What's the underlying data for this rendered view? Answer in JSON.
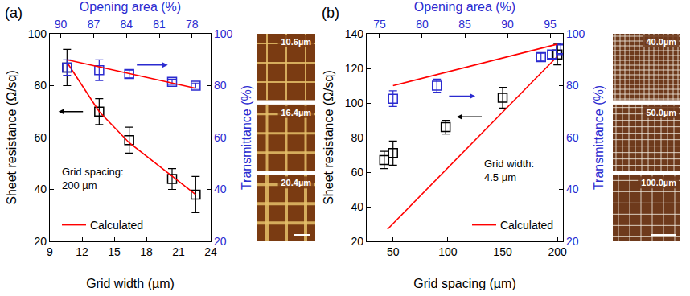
{
  "chart_data": [
    {
      "type": "scatter",
      "panel_label": "(a)",
      "x_label": "Grid width (µm)",
      "x2_label": "Opening area (%)",
      "y_label": "Sheet resistance (Ω/sq)",
      "y2_label": "Transmittance (%)",
      "xlim": [
        9,
        24
      ],
      "xticks": [
        9,
        12,
        15,
        18,
        21,
        24
      ],
      "x2lim": [
        91,
        76.3
      ],
      "x2ticks": [
        90,
        87,
        84,
        81,
        78
      ],
      "ylim": [
        20,
        100
      ],
      "yticks": [
        20,
        40,
        60,
        80,
        100
      ],
      "y2lim": [
        20,
        100
      ],
      "y2ticks": [
        20,
        40,
        60,
        80,
        100
      ],
      "note": [
        "Grid spacing:",
        "200 µm"
      ],
      "legend": "lower left",
      "grid": false,
      "series": [
        {
          "type": "scatter",
          "axis": "y",
          "color": "#000000",
          "marker": "open square",
          "x": [
            10.6,
            13.6,
            16.4,
            20.4,
            22.6
          ],
          "values": [
            87,
            70,
            59,
            44,
            38
          ],
          "errors": [
            7,
            5,
            5,
            4,
            7
          ]
        },
        {
          "type": "scatter",
          "axis": "y2",
          "color": "#2b2bd0",
          "marker": "open square",
          "x": [
            10.6,
            13.6,
            16.4,
            20.4,
            22.6
          ],
          "values": [
            87,
            86,
            84.5,
            81.5,
            80
          ],
          "errors": [
            3,
            4,
            1.5,
            1,
            1
          ]
        },
        {
          "type": "line",
          "name": "Calculated",
          "axis": "y",
          "color": "#ff0000",
          "line_style": "solid",
          "x": [
            10.6,
            13.6,
            16.4,
            20.4,
            22.6
          ],
          "values": [
            89,
            70,
            58,
            45,
            38
          ]
        },
        {
          "type": "line",
          "name": "Calculated",
          "axis": "y2",
          "color": "#ff0000",
          "line_style": "solid",
          "x": [
            10.6,
            22.6
          ],
          "values": [
            90,
            79
          ]
        }
      ],
      "micrographs": [
        "10.6µm",
        "16.4µm",
        "20.4µm"
      ]
    },
    {
      "type": "scatter",
      "panel_label": "(b)",
      "x_label": "Grid spacing (µm)",
      "x2_label": "Opening area (%)",
      "y_label": "Sheet resistance (Ω/sq)",
      "y2_label": "Transmittance (%)",
      "xlim": [
        26,
        205
      ],
      "xticks": [
        50,
        100,
        150,
        200
      ],
      "x2lim": [
        73.5,
        96.5
      ],
      "x2ticks": [
        75,
        80,
        85,
        90,
        95
      ],
      "ylim": [
        20,
        140
      ],
      "yticks": [
        20,
        40,
        60,
        80,
        100,
        120,
        140
      ],
      "y2lim": [
        20,
        100
      ],
      "y2ticks": [
        20,
        40,
        60,
        80,
        100
      ],
      "note": [
        "Grid width:",
        "4.5 µm"
      ],
      "legend": "lower right",
      "grid": false,
      "series": [
        {
          "type": "scatter",
          "axis": "y",
          "color": "#000000",
          "marker": "open square",
          "x": [
            42,
            50,
            98,
            150,
            200
          ],
          "values": [
            67,
            71,
            86,
            103,
            128
          ],
          "errors": [
            5,
            7,
            4,
            6,
            6
          ]
        },
        {
          "type": "scatter",
          "axis": "y2",
          "color": "#2b2bd0",
          "marker": "open square",
          "x": [
            50,
            90,
            185,
            195,
            203
          ],
          "values": [
            75,
            80,
            91,
            92,
            94
          ],
          "errors": [
            3,
            2.5,
            1.5,
            1.5,
            2
          ]
        },
        {
          "type": "line",
          "name": "Calculated",
          "axis": "y",
          "color": "#ff0000",
          "line_style": "solid",
          "x": [
            45,
            200
          ],
          "values": [
            27,
            127
          ]
        },
        {
          "type": "line",
          "name": "Calculated",
          "axis": "y2",
          "color": "#ff0000",
          "line_style": "solid",
          "x": [
            50,
            200
          ],
          "values": [
            80,
            96
          ]
        }
      ],
      "micrographs": [
        "40.0µm",
        "50.0µm",
        "100.0µm"
      ]
    }
  ]
}
